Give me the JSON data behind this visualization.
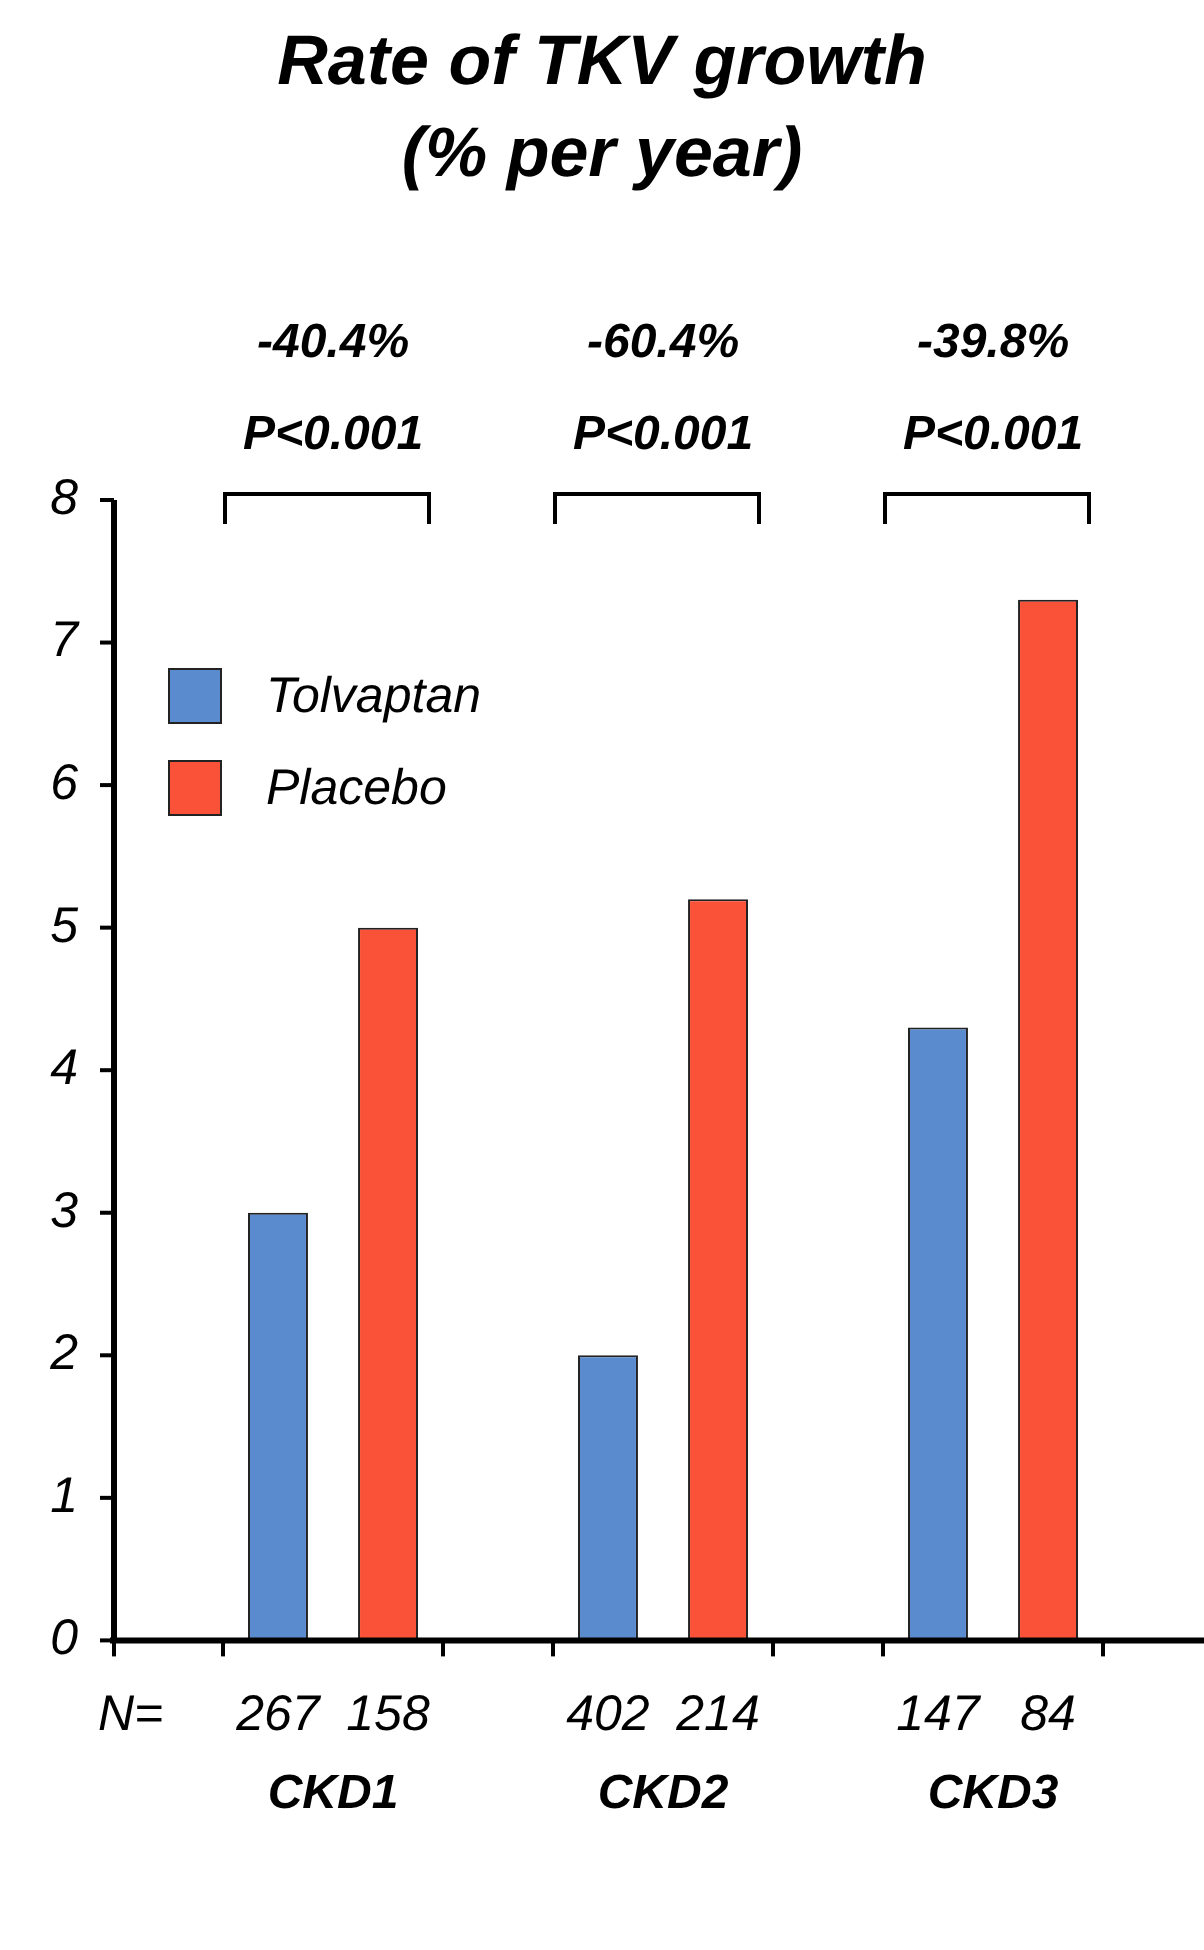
{
  "chart_data": {
    "type": "bar",
    "title": "Rate of TKV growth (% per year)",
    "categories": [
      "CKD1",
      "CKD2",
      "CKD3"
    ],
    "series": [
      {
        "name": "Tolvaptan",
        "color": "#5b8bcf",
        "values": [
          3.0,
          2.0,
          4.3
        ]
      },
      {
        "name": "Placebo",
        "color": "#fa5238",
        "values": [
          5.0,
          5.2,
          7.3
        ]
      }
    ],
    "ylim": [
      0,
      8
    ],
    "yticks": [
      0,
      1,
      2,
      3,
      4,
      5,
      6,
      7,
      8
    ],
    "grid": false,
    "legend": "top left",
    "annotations": [
      "-40.4%",
      "P<0.001",
      "267",
      "158",
      "-60.4%",
      "P<0.001",
      "402",
      "214",
      "-39.8%",
      "P<0.001",
      "147",
      "84",
      "N="
    ]
  }
}
